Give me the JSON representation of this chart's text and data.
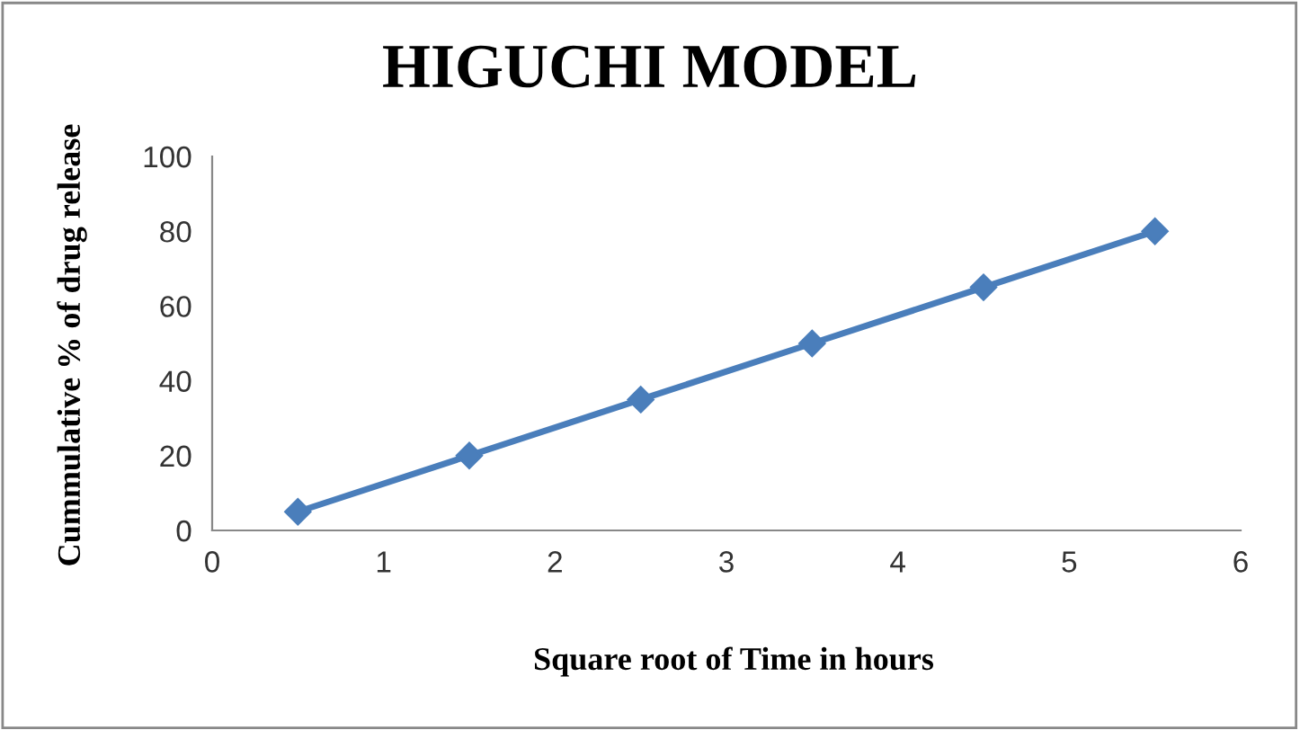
{
  "chart_data": {
    "type": "line",
    "title": "HIGUCHI MODEL",
    "xlabel": "Square root of Time in hours",
    "ylabel": "Cummulative % of drug release",
    "x": [
      0.5,
      1.5,
      2.5,
      3.5,
      4.5,
      5.5
    ],
    "series": [
      {
        "color": "#4a7ebb",
        "values": [
          5,
          20,
          35,
          50,
          65,
          80
        ]
      }
    ],
    "xlim": [
      0,
      6
    ],
    "xticks": [
      0,
      1,
      2,
      3,
      4,
      5,
      6
    ],
    "ylim": [
      0,
      100
    ],
    "yticks": [
      0,
      20,
      40,
      60,
      80,
      100
    ],
    "grid": false,
    "legend": false,
    "marker": "diamond",
    "line_style": "solid"
  }
}
